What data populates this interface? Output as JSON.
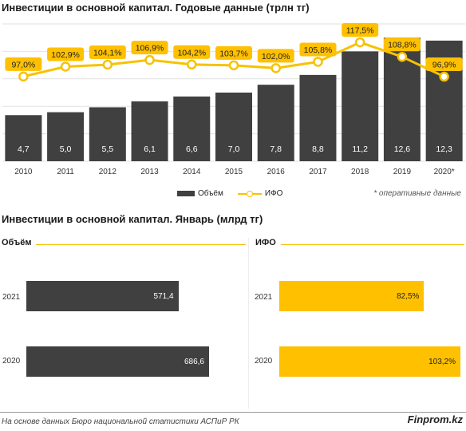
{
  "title_annual": "Инвестиции в основной капитал. Годовые данные (трлн тг)",
  "title_january": "Инвестиции в основной капитал. Январь (млрд тг)",
  "legend": {
    "bar_label": "Объём",
    "line_label": "ИФО"
  },
  "note": "* оперативные данные",
  "source": "На основе данных Бюро национальной статистики АСПиР РК",
  "brand": "Finprom.kz",
  "colors": {
    "bar_dark": "#404040",
    "accent_yellow": "#ffc000",
    "line_yellow": "#f7c200"
  },
  "chart_data": [
    {
      "type": "bar+line",
      "title": "Инвестиции в основной капитал. Годовые данные (трлн тг)",
      "categories": [
        "2010",
        "2011",
        "2012",
        "2013",
        "2014",
        "2015",
        "2016",
        "2017",
        "2018",
        "2019",
        "2020*"
      ],
      "series": [
        {
          "name": "Объём",
          "type": "bar",
          "values": [
            4.7,
            5.0,
            5.5,
            6.1,
            6.6,
            7.0,
            7.8,
            8.8,
            11.2,
            12.6,
            12.3
          ],
          "labels": [
            "4,7",
            "5,0",
            "5,5",
            "6,1",
            "6,6",
            "7,0",
            "7,8",
            "8,8",
            "11,2",
            "12,6",
            "12,3"
          ]
        },
        {
          "name": "ИФО",
          "type": "line",
          "values": [
            97.0,
            102.9,
            104.1,
            106.9,
            104.2,
            103.7,
            102.0,
            105.8,
            117.5,
            108.8,
            96.9
          ],
          "labels": [
            "97,0%",
            "102,9%",
            "104,1%",
            "106,9%",
            "104,2%",
            "103,7%",
            "102,0%",
            "105,8%",
            "117,5%",
            "108,8%",
            "96,9%"
          ]
        }
      ],
      "legend_position": "bottom",
      "grid": true
    },
    {
      "type": "bar",
      "orientation": "horizontal",
      "title": "Объём",
      "categories": [
        "2021",
        "2020"
      ],
      "values": [
        571.4,
        686.6
      ],
      "labels": [
        "571,4",
        "686,6"
      ]
    },
    {
      "type": "bar",
      "orientation": "horizontal",
      "title": "ИФО",
      "categories": [
        "2021",
        "2020"
      ],
      "values": [
        82.5,
        103.2
      ],
      "labels": [
        "82,5%",
        "103,2%"
      ]
    }
  ]
}
